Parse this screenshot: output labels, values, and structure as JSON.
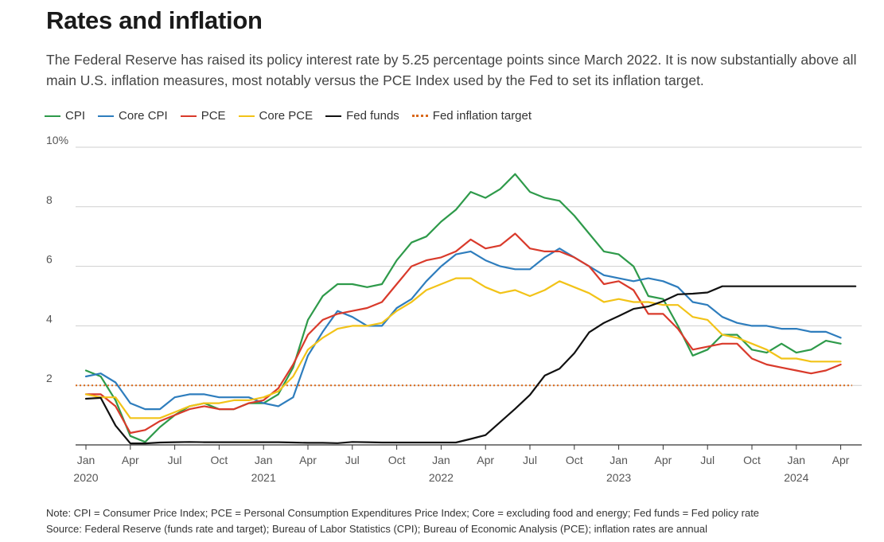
{
  "title": "Rates and inflation",
  "subtitle": "The Federal Reserve has raised its policy interest rate by 5.25 percentage points since March 2022. It is now substantially above all main U.S. inflation measures, most notably versus the PCE Index used by the Fed to set its inflation target.",
  "footnotes": {
    "note": "Note: CPI = Consumer Price Index; PCE = Personal Consumption Expenditures Price Index; Core = excluding food and energy; Fed funds = Fed policy rate",
    "source": "Source: Federal Reserve (funds rate and target); Bureau of Labor Statistics (CPI); Bureau of Economic Analysis (PCE); inflation rates are annual"
  },
  "legend": [
    {
      "label": "CPI",
      "color": "#2e9a4a",
      "style": "solid"
    },
    {
      "label": "Core CPI",
      "color": "#2e7dbd",
      "style": "solid"
    },
    {
      "label": "PCE",
      "color": "#d93a2b",
      "style": "solid"
    },
    {
      "label": "Core PCE",
      "color": "#f2c318",
      "style": "solid"
    },
    {
      "label": "Fed funds",
      "color": "#111111",
      "style": "solid"
    },
    {
      "label": "Fed inflation target",
      "color": "#d9681a",
      "style": "dotted"
    }
  ],
  "chart_data": {
    "type": "line",
    "title": "Rates and inflation",
    "xlabel": "",
    "ylabel": "",
    "ylim": [
      0,
      10
    ],
    "yticks": [
      {
        "value": 2,
        "label": "2"
      },
      {
        "value": 4,
        "label": "4"
      },
      {
        "value": 6,
        "label": "6"
      },
      {
        "value": 8,
        "label": "8"
      },
      {
        "value": 10,
        "label": "10%"
      }
    ],
    "xlim": [
      0,
      52
    ],
    "xticks": [
      {
        "month": 0,
        "label": "Jan",
        "year": "2020"
      },
      {
        "month": 3,
        "label": "Apr",
        "year": ""
      },
      {
        "month": 6,
        "label": "Jul",
        "year": ""
      },
      {
        "month": 9,
        "label": "Oct",
        "year": ""
      },
      {
        "month": 12,
        "label": "Jan",
        "year": "2021"
      },
      {
        "month": 15,
        "label": "Apr",
        "year": ""
      },
      {
        "month": 18,
        "label": "Jul",
        "year": ""
      },
      {
        "month": 21,
        "label": "Oct",
        "year": ""
      },
      {
        "month": 24,
        "label": "Jan",
        "year": "2022"
      },
      {
        "month": 27,
        "label": "Apr",
        "year": ""
      },
      {
        "month": 30,
        "label": "Jul",
        "year": ""
      },
      {
        "month": 33,
        "label": "Oct",
        "year": ""
      },
      {
        "month": 36,
        "label": "Jan",
        "year": "2023"
      },
      {
        "month": 39,
        "label": "Apr",
        "year": ""
      },
      {
        "month": 42,
        "label": "Jul",
        "year": ""
      },
      {
        "month": 45,
        "label": "Oct",
        "year": ""
      },
      {
        "month": 48,
        "label": "Jan",
        "year": "2024"
      },
      {
        "month": 51,
        "label": "Apr",
        "year": ""
      }
    ],
    "x_unit": "months since Jan 2020",
    "target": {
      "name": "Fed inflation target",
      "value": 2,
      "color": "#d9681a"
    },
    "series": [
      {
        "name": "CPI",
        "color": "#2e9a4a",
        "values": [
          2.5,
          2.3,
          1.5,
          0.3,
          0.1,
          0.6,
          1.0,
          1.3,
          1.4,
          1.2,
          1.2,
          1.4,
          1.4,
          1.7,
          2.6,
          4.2,
          5.0,
          5.4,
          5.4,
          5.3,
          5.4,
          6.2,
          6.8,
          7.0,
          7.5,
          7.9,
          8.5,
          8.3,
          8.6,
          9.1,
          8.5,
          8.3,
          8.2,
          7.7,
          7.1,
          6.5,
          6.4,
          6.0,
          5.0,
          4.9,
          4.0,
          3.0,
          3.2,
          3.7,
          3.7,
          3.2,
          3.1,
          3.4,
          3.1,
          3.2,
          3.5,
          3.4
        ]
      },
      {
        "name": "Core CPI",
        "color": "#2e7dbd",
        "values": [
          2.3,
          2.4,
          2.1,
          1.4,
          1.2,
          1.2,
          1.6,
          1.7,
          1.7,
          1.6,
          1.6,
          1.6,
          1.4,
          1.3,
          1.6,
          3.0,
          3.8,
          4.5,
          4.3,
          4.0,
          4.0,
          4.6,
          4.9,
          5.5,
          6.0,
          6.4,
          6.5,
          6.2,
          6.0,
          5.9,
          5.9,
          6.3,
          6.6,
          6.3,
          6.0,
          5.7,
          5.6,
          5.5,
          5.6,
          5.5,
          5.3,
          4.8,
          4.7,
          4.3,
          4.1,
          4.0,
          4.0,
          3.9,
          3.9,
          3.8,
          3.8,
          3.6
        ]
      },
      {
        "name": "PCE",
        "color": "#d93a2b",
        "values": [
          1.7,
          1.7,
          1.3,
          0.4,
          0.5,
          0.8,
          1.0,
          1.2,
          1.3,
          1.2,
          1.2,
          1.4,
          1.5,
          1.9,
          2.7,
          3.7,
          4.2,
          4.4,
          4.5,
          4.6,
          4.8,
          5.4,
          6.0,
          6.2,
          6.3,
          6.5,
          6.9,
          6.6,
          6.7,
          7.1,
          6.6,
          6.5,
          6.5,
          6.3,
          6.0,
          5.4,
          5.5,
          5.2,
          4.4,
          4.4,
          3.9,
          3.2,
          3.3,
          3.4,
          3.4,
          2.9,
          2.7,
          2.6,
          2.5,
          2.4,
          2.5,
          2.7
        ]
      },
      {
        "name": "Core PCE",
        "color": "#f2c318",
        "values": [
          1.7,
          1.6,
          1.6,
          0.9,
          0.9,
          0.9,
          1.1,
          1.3,
          1.4,
          1.4,
          1.5,
          1.5,
          1.6,
          1.8,
          2.3,
          3.2,
          3.6,
          3.9,
          4.0,
          4.0,
          4.1,
          4.5,
          4.8,
          5.2,
          5.4,
          5.6,
          5.6,
          5.3,
          5.1,
          5.2,
          5.0,
          5.2,
          5.5,
          5.3,
          5.1,
          4.8,
          4.9,
          4.8,
          4.8,
          4.7,
          4.7,
          4.3,
          4.2,
          3.7,
          3.6,
          3.4,
          3.2,
          2.9,
          2.9,
          2.8,
          2.8,
          2.8
        ]
      },
      {
        "name": "Fed funds",
        "color": "#111111",
        "values": [
          1.55,
          1.58,
          0.65,
          0.05,
          0.05,
          0.08,
          0.09,
          0.1,
          0.09,
          0.09,
          0.09,
          0.09,
          0.09,
          0.09,
          0.08,
          0.07,
          0.07,
          0.06,
          0.1,
          0.09,
          0.08,
          0.08,
          0.08,
          0.08,
          0.08,
          0.08,
          0.2,
          0.33,
          0.77,
          1.21,
          1.68,
          2.33,
          2.56,
          3.08,
          3.78,
          4.1,
          4.33,
          4.57,
          4.65,
          4.83,
          5.06,
          5.08,
          5.12,
          5.33,
          5.33,
          5.33,
          5.33,
          5.33,
          5.33,
          5.33,
          5.33,
          5.33,
          5.33
        ]
      }
    ]
  }
}
